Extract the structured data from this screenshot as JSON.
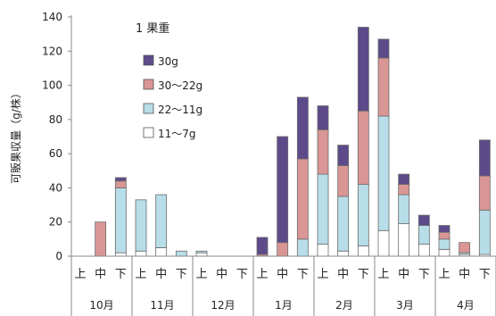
{
  "chart_data": {
    "type": "bar",
    "stacked": true,
    "ylabel": "可販果収量（g/株）",
    "ylim": [
      0,
      140
    ],
    "yticks": [
      0,
      20,
      40,
      60,
      80,
      100,
      120,
      140
    ],
    "grid": false,
    "legend_title": "1 果重",
    "legend_position": "top-left",
    "months": [
      "10月",
      "11月",
      "12月",
      "1月",
      "2月",
      "3月",
      "4月"
    ],
    "periods": [
      "上",
      "中",
      "下"
    ],
    "series": [
      {
        "name": "11～7g",
        "color": "#ffffff",
        "values": [
          0,
          0,
          2,
          3,
          5,
          0,
          2,
          0,
          0,
          0,
          0,
          0,
          7,
          3,
          6,
          15,
          19,
          7,
          4,
          1,
          1
        ]
      },
      {
        "name": "22～11g",
        "color": "#b7dde8",
        "values": [
          0,
          0,
          38,
          30,
          31,
          3,
          1,
          0,
          0,
          0,
          0,
          10,
          41,
          32,
          36,
          67,
          17,
          11,
          6,
          1,
          26
        ]
      },
      {
        "name": "30～22g",
        "color": "#d99694",
        "values": [
          0,
          20,
          4,
          0,
          0,
          0,
          0,
          0,
          0,
          1,
          8,
          47,
          26,
          18,
          43,
          34,
          6,
          0,
          4,
          6,
          20
        ]
      },
      {
        "name": "30g",
        "color": "#5c4a8a",
        "values": [
          0,
          0,
          2,
          0,
          0,
          0,
          0,
          0,
          0,
          10,
          62,
          36,
          14,
          12,
          49,
          11,
          6,
          6,
          4,
          0,
          21
        ]
      }
    ]
  }
}
